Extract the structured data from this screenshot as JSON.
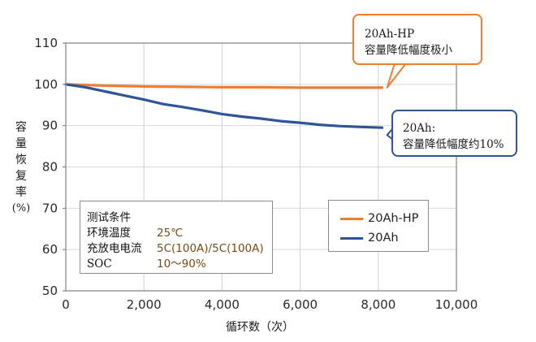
{
  "chart_data": {
    "type": "line",
    "title": "",
    "xlabel": "循环数（次）",
    "ylabel": "容量恢复率(%)",
    "xlim": [
      0,
      10000
    ],
    "ylim": [
      50,
      110
    ],
    "x_ticks": [
      "0",
      "2,000",
      "4,000",
      "6,000",
      "8,000",
      "10,000"
    ],
    "y_ticks": [
      "50",
      "60",
      "70",
      "80",
      "90",
      "100",
      "110"
    ],
    "grid": true,
    "legend_position": "lower right (inside plot)",
    "series": [
      {
        "name": "20Ah-HP",
        "color": "#ed7d31",
        "x": [
          0,
          1000,
          2000,
          3000,
          4000,
          5000,
          6000,
          7000,
          8100
        ],
        "values": [
          100.0,
          99.7,
          99.5,
          99.4,
          99.3,
          99.3,
          99.2,
          99.2,
          99.2
        ]
      },
      {
        "name": "20Ah",
        "color": "#2f5597",
        "x": [
          0,
          500,
          1000,
          1500,
          2000,
          2500,
          3000,
          3500,
          4000,
          4500,
          5000,
          5500,
          6000,
          6500,
          7000,
          7500,
          8100
        ],
        "values": [
          100.0,
          99.3,
          98.3,
          97.3,
          96.3,
          95.2,
          94.5,
          93.7,
          92.8,
          92.2,
          91.7,
          91.1,
          90.7,
          90.2,
          89.9,
          89.7,
          89.5
        ]
      }
    ],
    "annotations": [
      {
        "target": "20Ah-HP",
        "lines": [
          "20Ah-HP",
          "容量降低幅度极小"
        ],
        "border_color": "#ed7d31"
      },
      {
        "target": "20Ah",
        "lines": [
          "20Ah:",
          "容量降低幅度约10%"
        ],
        "border_color": "#2f5597"
      }
    ]
  },
  "y_label_chars": [
    "容",
    "量",
    "恢",
    "复",
    "率",
    "(%)"
  ],
  "x_title": "循环数（次）",
  "conditions": {
    "title": "测试条件",
    "rows": [
      {
        "key": "环境温度",
        "value": "25℃"
      },
      {
        "key": "充放电电流",
        "value": "5C(100A)/5C(100A)"
      },
      {
        "key": "SOC",
        "value": "10～90%"
      }
    ]
  },
  "legend": [
    {
      "label": "20Ah-HP",
      "color": "#ed7d31"
    },
    {
      "label": "20Ah",
      "color": "#2f5597"
    }
  ],
  "callouts": {
    "hp": {
      "line1": "20Ah-HP",
      "line2": "容量降低幅度极小"
    },
    "std": {
      "line1": "20Ah:",
      "line2": "容量降低幅度约10%"
    }
  }
}
